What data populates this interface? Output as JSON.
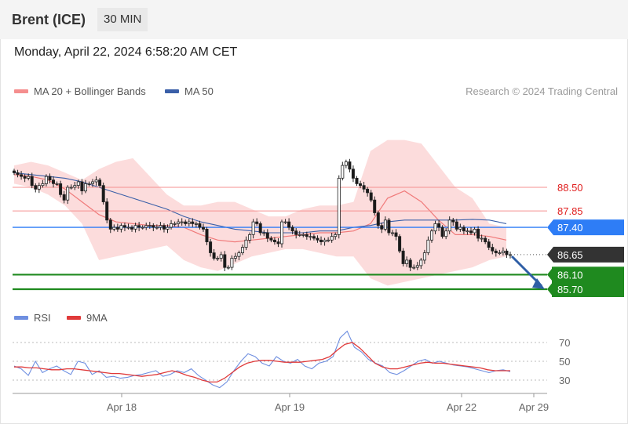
{
  "header": {
    "instrument": "Brent (ICE)",
    "timeframe": "30 MIN"
  },
  "datetime": "Monday, April 22, 2024 6:58:20 AM CET",
  "legend": {
    "ma20": "MA 20 + Bollinger Bands",
    "ma50": "MA 50",
    "copyright": "Research © 2024 Trading Central"
  },
  "rsi_legend": {
    "rsi": "RSI",
    "ma9": "9MA"
  },
  "colors": {
    "ma20": "#f07a7a",
    "ma50": "#3a5fa8",
    "bollinger": "#fcd6d6",
    "resistance": "#f48f8f",
    "pivot": "#2e7df6",
    "current": "#333333",
    "support": "#1f8a1f",
    "rsi": "#6f8fe0",
    "rsi_ma": "#e03a3a",
    "arrow": "#2f5fa6",
    "candle_up": "#ffffff",
    "candle_down": "#1a1a1a"
  },
  "chart_data": {
    "type": "candlestick",
    "price_range": [
      85.5,
      89.5
    ],
    "x_ticks": [
      "Apr 18",
      "Apr 19",
      "Apr 22",
      "Apr 29"
    ],
    "levels": [
      {
        "price": 88.5,
        "label": "88.50",
        "kind": "resistance"
      },
      {
        "price": 87.85,
        "label": "87.85",
        "kind": "resistance"
      },
      {
        "price": 87.4,
        "label": "87.40",
        "kind": "pivot"
      },
      {
        "price": 86.65,
        "label": "86.65",
        "kind": "current"
      },
      {
        "price": 86.1,
        "label": "86.10",
        "kind": "support"
      },
      {
        "price": 85.7,
        "label": "85.70",
        "kind": "support"
      }
    ],
    "closes": [
      88.9,
      88.85,
      88.8,
      88.75,
      88.8,
      88.55,
      88.45,
      88.55,
      88.6,
      88.8,
      88.7,
      88.6,
      88.6,
      88.3,
      88.15,
      88.5,
      88.5,
      88.55,
      88.65,
      88.4,
      88.6,
      88.6,
      88.65,
      88.7,
      88.55,
      88.1,
      87.6,
      87.35,
      87.4,
      87.35,
      87.45,
      87.4,
      87.4,
      87.35,
      87.45,
      87.4,
      87.4,
      87.45,
      87.45,
      87.4,
      87.4,
      87.45,
      87.35,
      87.4,
      87.5,
      87.5,
      87.55,
      87.55,
      87.5,
      87.55,
      87.5,
      87.5,
      87.4,
      87.35,
      87.0,
      86.7,
      86.55,
      86.55,
      86.65,
      86.3,
      86.3,
      86.55,
      86.6,
      86.7,
      86.85,
      87.05,
      87.2,
      87.55,
      87.5,
      87.25,
      87.25,
      87.1,
      87.05,
      87.0,
      86.95,
      87.55,
      87.55,
      87.4,
      87.3,
      87.2,
      87.2,
      87.2,
      87.15,
      87.15,
      87.1,
      87.05,
      87.0,
      87.05,
      87.05,
      87.15,
      87.2,
      88.75,
      89.1,
      89.2,
      89.0,
      88.75,
      88.6,
      88.55,
      88.45,
      88.35,
      88.15,
      87.8,
      87.45,
      87.35,
      87.6,
      87.25,
      87.25,
      87.15,
      86.75,
      86.4,
      86.5,
      86.3,
      86.3,
      86.35,
      86.5,
      86.7,
      87.05,
      87.3,
      87.5,
      87.4,
      87.15,
      87.3,
      87.6,
      87.55,
      87.35,
      87.4,
      87.3,
      87.3,
      87.25,
      87.35,
      87.1,
      87.1,
      87.0,
      86.85,
      86.75,
      86.7,
      86.7,
      86.75,
      86.65,
      86.65
    ],
    "bands": {
      "upper": [
        89.1,
        89.2,
        89.1,
        88.9,
        88.7,
        89.0,
        89.2,
        89.3,
        88.8,
        88.3,
        88.0,
        88.0,
        88.1,
        88.1,
        87.9,
        87.7,
        87.7,
        87.9,
        88.0,
        88.0,
        88.1,
        89.5,
        89.8,
        89.8,
        89.7,
        89.1,
        88.5,
        88.2,
        87.5,
        87.4
      ],
      "lower": [
        88.6,
        88.5,
        88.3,
        88.0,
        87.5,
        86.5,
        86.6,
        86.7,
        86.8,
        86.9,
        86.5,
        86.3,
        86.2,
        86.4,
        86.6,
        86.7,
        86.8,
        86.8,
        86.7,
        86.6,
        86.6,
        86.0,
        85.8,
        85.9,
        86.0,
        86.1,
        86.2,
        86.3,
        86.5,
        86.6
      ],
      "ma20": [
        88.85,
        88.8,
        88.7,
        88.45,
        88.1,
        87.75,
        87.55,
        87.5,
        87.45,
        87.45,
        87.4,
        87.2,
        87.05,
        87.0,
        87.05,
        87.1,
        87.15,
        87.2,
        87.25,
        87.25,
        87.3,
        87.5,
        88.2,
        88.4,
        88.1,
        87.6,
        87.2,
        87.2,
        87.15,
        87.05
      ],
      "ma50": [
        88.9,
        88.85,
        88.8,
        88.75,
        88.65,
        88.5,
        88.35,
        88.2,
        88.05,
        87.9,
        87.7,
        87.55,
        87.45,
        87.35,
        87.3,
        87.25,
        87.25,
        87.25,
        87.3,
        87.3,
        87.4,
        87.45,
        87.55,
        87.6,
        87.6,
        87.6,
        87.6,
        87.62,
        87.6,
        87.5
      ]
    },
    "rsi": {
      "y_ticks": [
        "70",
        "50",
        "30"
      ],
      "y_range": [
        20,
        90
      ],
      "values": [
        45,
        42,
        35,
        50,
        38,
        42,
        45,
        40,
        36,
        50,
        48,
        36,
        40,
        33,
        34,
        32,
        33,
        35,
        36,
        38,
        40,
        34,
        36,
        40,
        38,
        42,
        35,
        30,
        25,
        22,
        28,
        40,
        50,
        58,
        55,
        48,
        45,
        55,
        50,
        48,
        52,
        45,
        42,
        48,
        50,
        55,
        75,
        82,
        65,
        60,
        52,
        48,
        45,
        38,
        36,
        40,
        45,
        50,
        52,
        48,
        50,
        48,
        46,
        45,
        44,
        42,
        40,
        38,
        40,
        41,
        39
      ],
      "ma9": [
        44,
        44,
        43,
        43,
        42,
        41,
        41,
        42,
        42,
        41,
        40,
        39,
        38,
        37,
        37,
        36,
        35,
        34,
        35,
        36,
        38,
        40,
        38,
        35,
        33,
        30,
        28,
        28,
        32,
        38,
        44,
        48,
        50,
        51,
        51,
        50,
        49,
        49,
        49,
        50,
        51,
        52,
        55,
        62,
        68,
        70,
        64,
        56,
        48,
        44,
        42,
        42,
        44,
        46,
        48,
        49,
        48,
        48,
        47,
        46,
        45,
        44,
        43,
        41,
        40,
        40,
        40
      ]
    }
  }
}
